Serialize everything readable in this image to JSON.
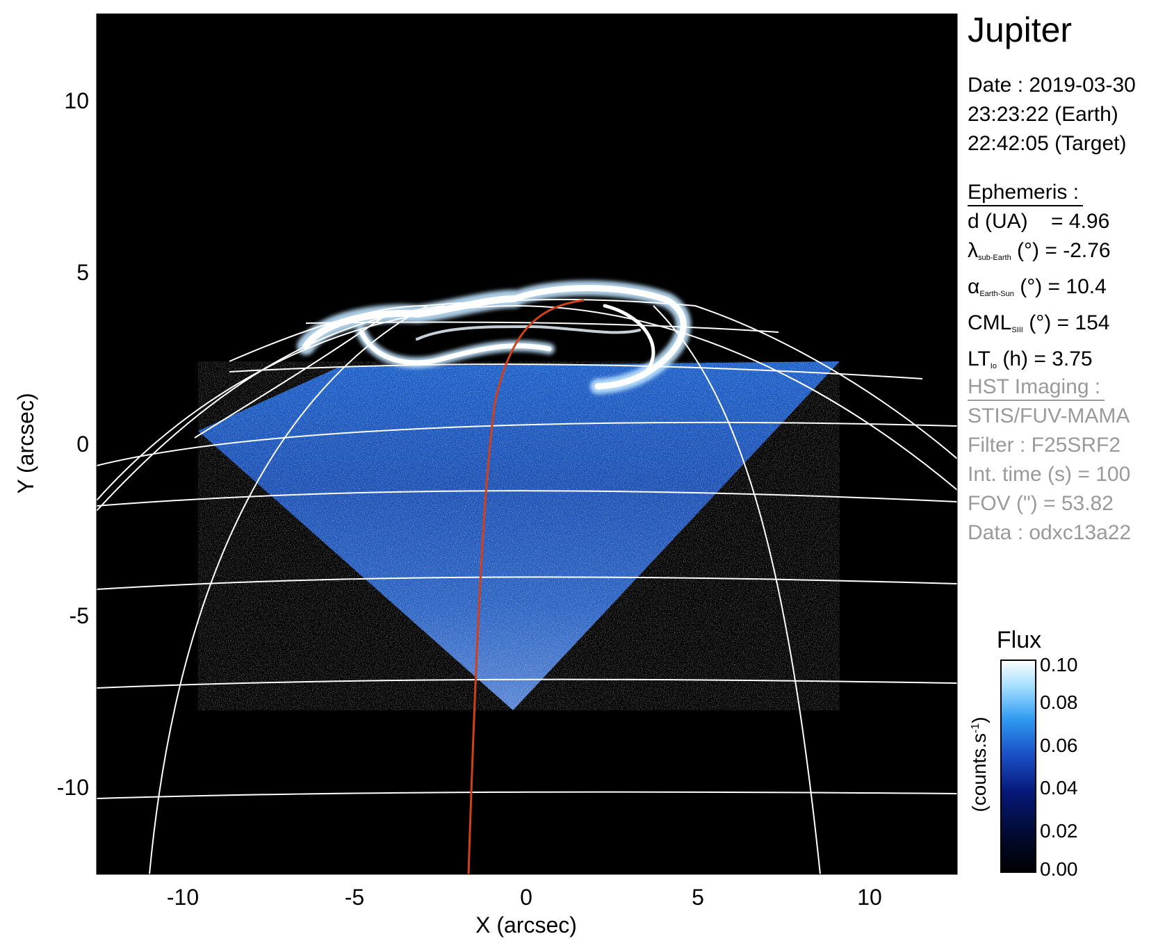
{
  "figure": {
    "x_axis": {
      "label": "X (arcsec)",
      "ticks": [
        "-10",
        "-5",
        "0",
        "5",
        "10"
      ],
      "tick_values": [
        -10,
        -5,
        0,
        5,
        10
      ],
      "range": [
        -12.5,
        12.5
      ]
    },
    "y_axis": {
      "label": "Y (arcsec)",
      "ticks": [
        "10",
        "5",
        "0",
        "-5",
        "-10"
      ],
      "tick_values": [
        10,
        5,
        0,
        -5,
        -10
      ],
      "range": [
        -12.5,
        12.5
      ]
    },
    "colors": {
      "background": "#000000",
      "grid": "#ffffff",
      "meridian": "#d2401a",
      "emission_low": "#0a2a8a",
      "emission_high": "#ffffff"
    }
  },
  "info": {
    "target": "Jupiter",
    "date_line": "Date : 2019-03-30",
    "earth_time": "23:23:22 (Earth)",
    "target_time": "22:42:05 (Target)",
    "ephemeris_heading": "Ephemeris :",
    "ephemeris": {
      "d": {
        "sym": "d (UA)",
        "value": "= 4.96"
      },
      "lambda": {
        "sym": "λ",
        "sub": "sub-Earth",
        "unit": "(°)",
        "value": "= -2.76"
      },
      "alpha": {
        "sym": "α",
        "sub": "Earth-Sun",
        "unit": "(°)",
        "value": "= 10.4"
      },
      "cml": {
        "sym": "CML",
        "sub": "SIII",
        "unit": "(°)",
        "value": "= 154"
      },
      "lt": {
        "sym": "LT",
        "sub": "Io",
        "unit": "(h)",
        "value": "= 3.75"
      }
    },
    "hst_heading": "HST Imaging :",
    "hst": {
      "instrument": "STIS/FUV-MAMA",
      "filter": "Filter : F25SRF2",
      "int_time": "Int. time (s) = 100",
      "fov": "FOV (\") = 53.82",
      "data": "Data : odxc13a22"
    }
  },
  "colorbar": {
    "title": "Flux",
    "units": "(counts.s",
    "units_exp": "-1",
    "units_close": ")",
    "ticks": [
      "0.10",
      "0.08",
      "0.06",
      "0.04",
      "0.02",
      "0.00"
    ],
    "range": [
      0.0,
      0.1
    ],
    "stops": [
      "#000000",
      "#020a2e",
      "#06187a",
      "#1a52c8",
      "#2f9af0",
      "#9fdcff",
      "#ffffff"
    ]
  }
}
